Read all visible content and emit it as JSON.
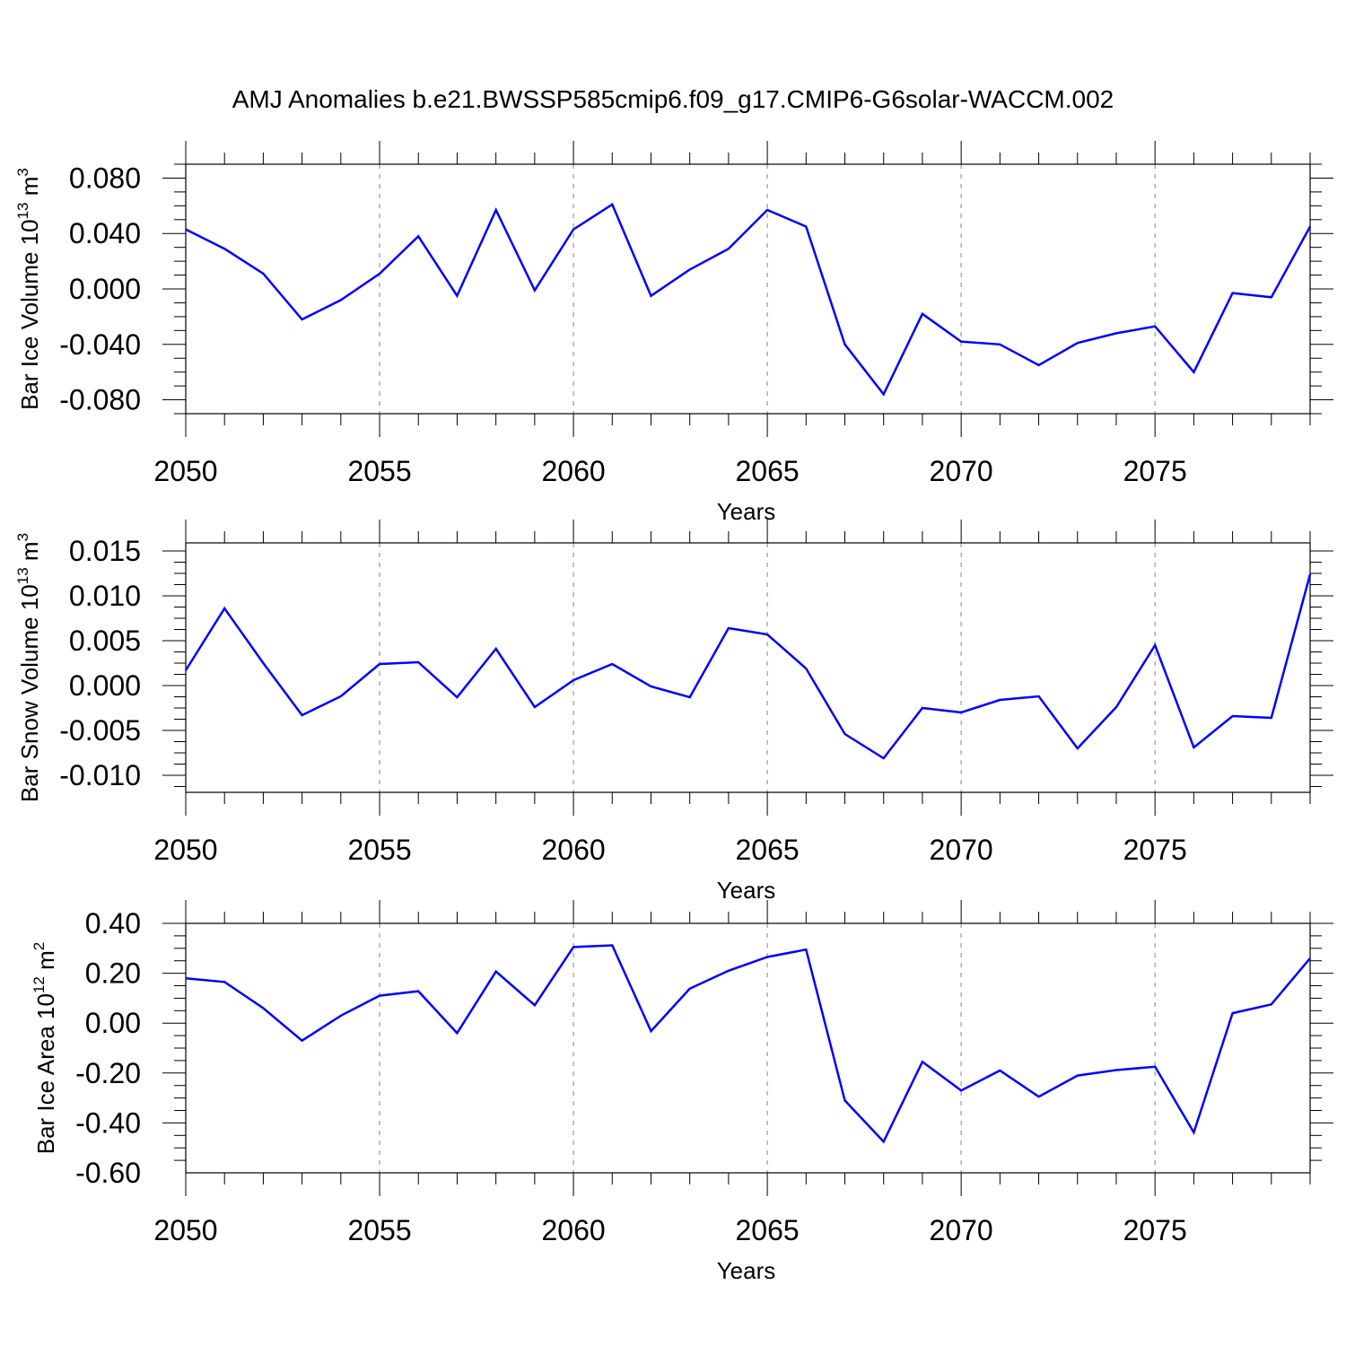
{
  "title": "AMJ Anomalies b.e21.BWSSP585cmip6.f09_g17.CMIP6-G6solar-WACCM.002",
  "chart_data": [
    {
      "type": "line",
      "xlabel": "Years",
      "ylabel": "Bar Ice Volume 10",
      "ylabel_exp": "13",
      "ylabel_unit": " m",
      "ylabel_unit_exp": "3",
      "xlim": [
        2050,
        2079
      ],
      "ylim": [
        -0.09,
        0.09
      ],
      "xticks": [
        2050,
        2055,
        2060,
        2065,
        2070,
        2075
      ],
      "xtick_labels": [
        "2050",
        "2055",
        "2060",
        "2065",
        "2070",
        "2075"
      ],
      "yticks": [
        0.08,
        0.04,
        0.0,
        -0.04,
        -0.08
      ],
      "ytick_labels": [
        "0.080",
        "0.040",
        "0.000",
        "-0.040",
        "-0.080"
      ],
      "grid_x": [
        2055,
        2060,
        2065,
        2070,
        2075
      ],
      "series": [
        {
          "name": "Bar Ice Volume",
          "color": "#0000ff",
          "x": [
            2050,
            2051,
            2052,
            2053,
            2054,
            2055,
            2056,
            2057,
            2058,
            2059,
            2060,
            2061,
            2062,
            2063,
            2064,
            2065,
            2066,
            2067,
            2068,
            2069,
            2070,
            2071,
            2072,
            2073,
            2074,
            2075,
            2076,
            2077,
            2078,
            2079
          ],
          "values": [
            0.043,
            0.029,
            0.011,
            -0.022,
            -0.008,
            0.011,
            0.038,
            -0.005,
            0.057,
            -0.001,
            0.043,
            0.061,
            -0.005,
            0.014,
            0.029,
            0.057,
            0.045,
            -0.04,
            -0.076,
            -0.018,
            -0.038,
            -0.04,
            -0.055,
            -0.039,
            -0.032,
            -0.027,
            -0.06,
            -0.003,
            -0.006,
            0.045
          ]
        }
      ]
    },
    {
      "type": "line",
      "xlabel": "Years",
      "ylabel": "Bar Snow Volume 10",
      "ylabel_exp": "13",
      "ylabel_unit": " m",
      "ylabel_unit_exp": "3",
      "xlim": [
        2050,
        2079
      ],
      "ylim": [
        -0.0119,
        0.0159
      ],
      "xticks": [
        2050,
        2055,
        2060,
        2065,
        2070,
        2075
      ],
      "xtick_labels": [
        "2050",
        "2055",
        "2060",
        "2065",
        "2070",
        "2075"
      ],
      "yticks": [
        0.015,
        0.01,
        0.005,
        0.0,
        -0.005,
        -0.01
      ],
      "ytick_labels": [
        "0.015",
        "0.010",
        "0.005",
        "0.000",
        "-0.005",
        "-0.010"
      ],
      "grid_x": [
        2055,
        2060,
        2065,
        2070,
        2075
      ],
      "series": [
        {
          "name": "Bar Snow Volume",
          "color": "#0000ff",
          "x": [
            2050,
            2051,
            2052,
            2053,
            2054,
            2055,
            2056,
            2057,
            2058,
            2059,
            2060,
            2061,
            2062,
            2063,
            2064,
            2065,
            2066,
            2067,
            2068,
            2069,
            2070,
            2071,
            2072,
            2073,
            2074,
            2075,
            2076,
            2077,
            2078,
            2079
          ],
          "values": [
            0.0017,
            0.0086,
            0.0025,
            -0.0033,
            -0.0012,
            0.0024,
            0.0026,
            -0.0013,
            0.0041,
            -0.0024,
            0.0006,
            0.0024,
            -0.0001,
            -0.0013,
            0.0064,
            0.0057,
            0.0019,
            -0.0054,
            -0.0081,
            -0.0025,
            -0.003,
            -0.0016,
            -0.0012,
            -0.007,
            -0.0024,
            0.0045,
            -0.0069,
            -0.0034,
            -0.0036,
            0.0124
          ]
        }
      ]
    },
    {
      "type": "line",
      "xlabel": "Years",
      "ylabel": "Bar Ice Area 10",
      "ylabel_exp": "12",
      "ylabel_unit": " m",
      "ylabel_unit_exp": "2",
      "xlim": [
        2050,
        2079
      ],
      "ylim": [
        -0.6,
        0.4
      ],
      "xticks": [
        2050,
        2055,
        2060,
        2065,
        2070,
        2075
      ],
      "xtick_labels": [
        "2050",
        "2055",
        "2060",
        "2065",
        "2070",
        "2075"
      ],
      "yticks": [
        0.4,
        0.2,
        0.0,
        -0.2,
        -0.4,
        -0.6
      ],
      "ytick_labels": [
        "0.40",
        "0.20",
        "0.00",
        "-0.20",
        "-0.40",
        "-0.60"
      ],
      "grid_x": [
        2055,
        2060,
        2065,
        2070,
        2075
      ],
      "series": [
        {
          "name": "Bar Ice Area",
          "color": "#0000ff",
          "x": [
            2050,
            2051,
            2052,
            2053,
            2054,
            2055,
            2056,
            2057,
            2058,
            2059,
            2060,
            2061,
            2062,
            2063,
            2064,
            2065,
            2066,
            2067,
            2068,
            2069,
            2070,
            2071,
            2072,
            2073,
            2074,
            2075,
            2076,
            2077,
            2078,
            2079
          ],
          "values": [
            0.18,
            0.165,
            0.06,
            -0.07,
            0.03,
            0.11,
            0.128,
            -0.04,
            0.207,
            0.072,
            0.305,
            0.312,
            -0.032,
            0.138,
            0.21,
            0.265,
            0.295,
            -0.31,
            -0.475,
            -0.155,
            -0.27,
            -0.19,
            -0.295,
            -0.21,
            -0.188,
            -0.175,
            -0.438,
            0.04,
            0.075,
            0.26
          ]
        }
      ]
    }
  ]
}
